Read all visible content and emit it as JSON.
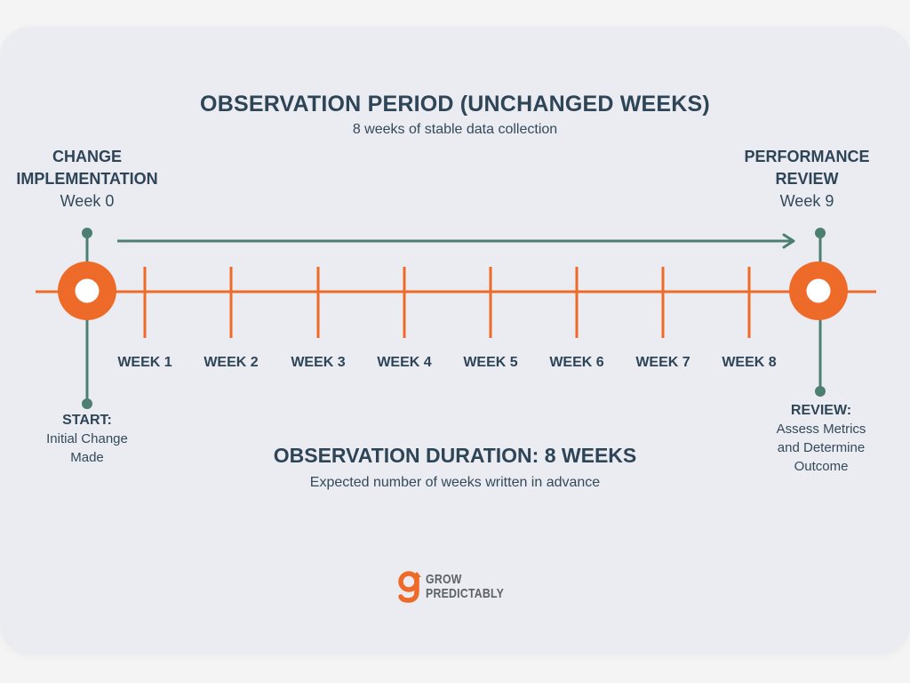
{
  "header": {
    "title": "OBSERVATION PERIOD (UNCHANGED WEEKS)",
    "subtitle": "8 weeks of stable data collection"
  },
  "start_node": {
    "title_line1": "CHANGE",
    "title_line2": "IMPLEMENTATION",
    "week": "Week 0",
    "label": "START:",
    "desc_line1": "Initial Change",
    "desc_line2": "Made"
  },
  "end_node": {
    "title_line1": "PERFORMANCE",
    "title_line2": "REVIEW",
    "week": "Week 9",
    "label": "REVIEW:",
    "desc_line1": "Assess Metrics",
    "desc_line2": "and Determine",
    "desc_line3": "Outcome"
  },
  "weeks": [
    "WEEK 1",
    "WEEK 2",
    "WEEK 3",
    "WEEK 4",
    "WEEK 5",
    "WEEK 6",
    "WEEK 7",
    "WEEK 8"
  ],
  "duration": {
    "title": "OBSERVATION DURATION: 8 WEEKS",
    "subtitle": "Expected number of weeks written in advance"
  },
  "logo": {
    "line1": "GROW",
    "line2": "PREDICTABLY"
  },
  "colors": {
    "orange": "#ee6a28",
    "teal": "#4d7f71",
    "navy": "#2e4457",
    "background": "#ebecf1"
  }
}
